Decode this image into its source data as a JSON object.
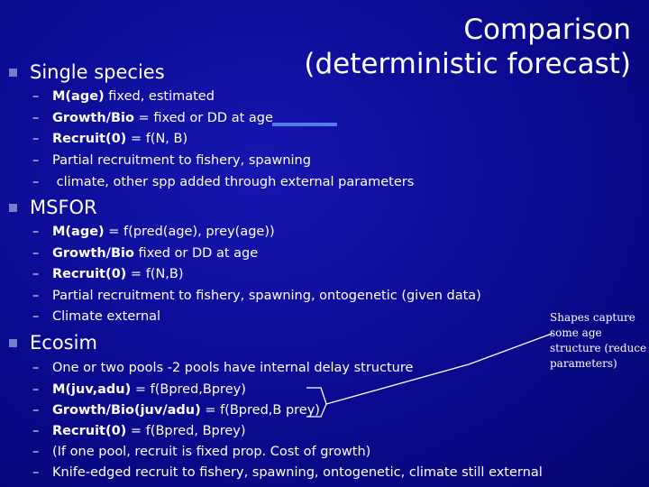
{
  "title": "Comparison (deterministic forecast)",
  "sections": [
    {
      "heading": "Single species",
      "items": [
        {
          "bold": "M(age)",
          "rest": " fixed, estimated"
        },
        {
          "bold": "Growth/Bio",
          "rest": " = fixed or DD at age"
        },
        {
          "bold": "Recruit(0)",
          "rest": " = f(N, B)"
        },
        {
          "bold": "",
          "rest": "Partial recruitment to fishery, spawning"
        },
        {
          "bold": "",
          "rest": " climate, other spp added through external parameters"
        }
      ]
    },
    {
      "heading": "MSFOR",
      "items": [
        {
          "bold": "M(age)",
          "rest": " = f(pred(age), prey(age))"
        },
        {
          "bold": "Growth/Bio",
          "rest": " fixed or DD at age"
        },
        {
          "bold": "Recruit(0)",
          "rest": " = f(N,B)"
        },
        {
          "bold": "",
          "rest": "Partial recruitment to fishery, spawning, ontogenetic (given data)"
        },
        {
          "bold": "",
          "rest": "Climate external"
        }
      ]
    },
    {
      "heading": "Ecosim",
      "items": [
        {
          "bold": "",
          "rest": "One or two pools -2 pools have internal delay structure"
        },
        {
          "bold": "M(juv,adu)",
          "rest": " = f(Bpred,Bprey)"
        },
        {
          "bold": "Growth/Bio(juv/adu)",
          "rest": " = f(Bpred,B prey)"
        },
        {
          "bold": "Recruit(0)",
          "rest": " = f(Bpred, Bprey)"
        },
        {
          "bold": "",
          "rest": "(If one pool, recruit is fixed prop. Cost of growth)"
        },
        {
          "bold": "",
          "rest": "Knife-edged recruit to fishery, spawning, ontogenetic, climate still external"
        }
      ]
    }
  ],
  "note": "Shapes capture some age structure (reduce parameters)",
  "dash": "–"
}
